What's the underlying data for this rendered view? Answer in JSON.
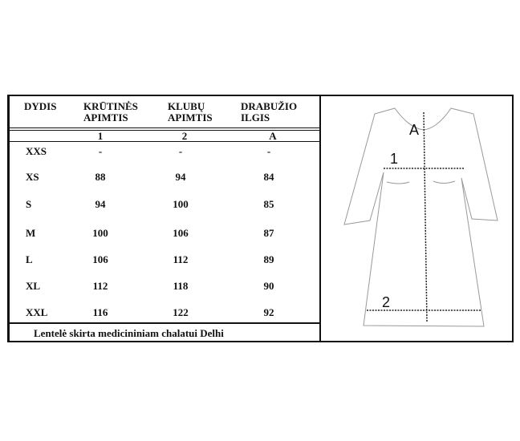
{
  "table": {
    "headers": [
      [
        "DYDIS"
      ],
      [
        "KRŪTINĖS",
        "APIMTIS"
      ],
      [
        "KLUBŲ",
        "APIMTIS"
      ],
      [
        "DRABUŽIO",
        "ILGIS"
      ]
    ],
    "markers": [
      "1",
      "2",
      "A"
    ],
    "rows": [
      {
        "size": "XXS",
        "chest": "-",
        "hip": "-",
        "length": "-"
      },
      {
        "size": "XS",
        "chest": "88",
        "hip": "94",
        "length": "84"
      },
      {
        "size": "S",
        "chest": "94",
        "hip": "100",
        "length": "85"
      },
      {
        "size": "M",
        "chest": "100",
        "hip": "106",
        "length": "87"
      },
      {
        "size": "L",
        "chest": "106",
        "hip": "112",
        "length": "89"
      },
      {
        "size": "XL",
        "chest": "112",
        "hip": "118",
        "length": "90"
      },
      {
        "size": "XXL",
        "chest": "116",
        "hip": "122",
        "length": "92"
      }
    ],
    "footer": "Lentelė skirta medicininiam chalatui  Delhi"
  },
  "diagram": {
    "labels": {
      "length": "A",
      "chest": "1",
      "hip": "2"
    }
  }
}
